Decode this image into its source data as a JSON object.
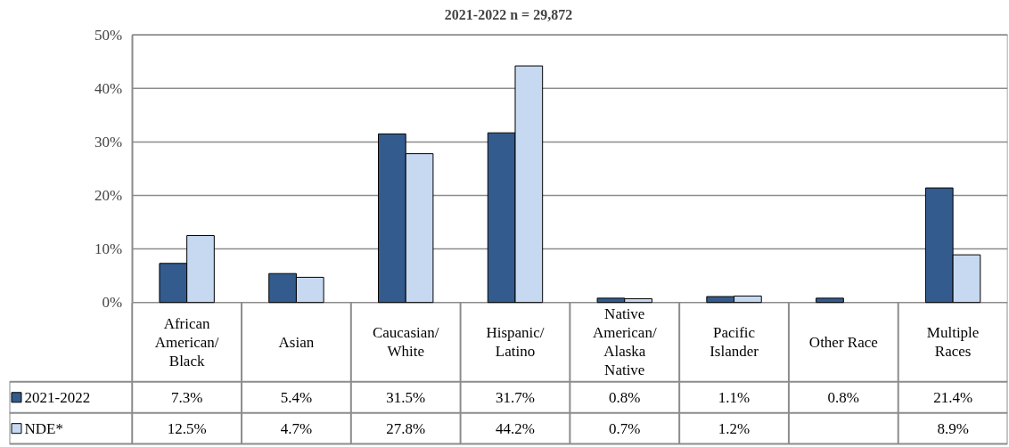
{
  "chart_data": {
    "type": "bar",
    "title": "2021-2022 n = 29,872",
    "categories": [
      "African American/Black",
      "Asian",
      "Caucasian/White",
      "Hispanic/Latino",
      "Native American/Alaska Native",
      "Pacific Islander",
      "Other Race",
      "Multiple Races"
    ],
    "series": [
      {
        "name": "2021-2022",
        "color": "#335b8d",
        "values": [
          7.3,
          5.4,
          31.5,
          31.7,
          0.8,
          1.1,
          0.8,
          21.4
        ],
        "value_labels": [
          "7.3%",
          "5.4%",
          "31.5%",
          "31.7%",
          "0.8%",
          "1.1%",
          "0.8%",
          "21.4%"
        ]
      },
      {
        "name": "NDE*",
        "color": "#c6d9f1",
        "values": [
          12.5,
          4.7,
          27.8,
          44.2,
          0.7,
          1.2,
          null,
          8.9
        ],
        "value_labels": [
          "12.5%",
          "4.7%",
          "27.8%",
          "44.2%",
          "0.7%",
          "1.2%",
          null,
          "8.9%"
        ]
      }
    ],
    "ylim": [
      0,
      50
    ],
    "yticks": [
      {
        "value": 0,
        "label": "0%"
      },
      {
        "value": 10,
        "label": "10%"
      },
      {
        "value": 20,
        "label": "20%"
      },
      {
        "value": 30,
        "label": "30%"
      },
      {
        "value": 40,
        "label": "40%"
      },
      {
        "value": 50,
        "label": "50%"
      }
    ],
    "grid": "y",
    "legend": "bottom left"
  }
}
